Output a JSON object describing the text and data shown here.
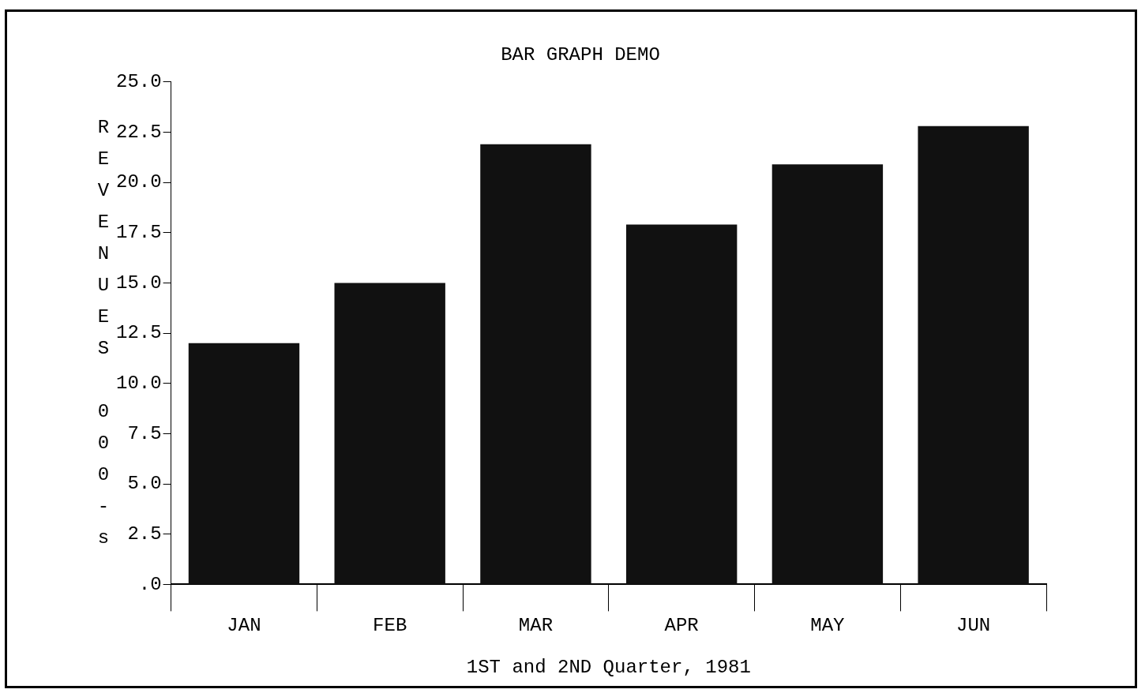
{
  "chart_data": {
    "type": "bar",
    "title": "BAR GRAPH DEMO",
    "xlabel": "1ST and 2ND Quarter, 1981",
    "ylabel": "REVENUES 000-s",
    "categories": [
      "JAN",
      "FEB",
      "MAR",
      "APR",
      "MAY",
      "JUN"
    ],
    "values": [
      12.0,
      15.0,
      21.9,
      17.9,
      20.9,
      22.8
    ],
    "color": "#111111",
    "ylim": [
      0,
      25
    ],
    "yticks": [
      {
        "value": 0,
        "label": ".0"
      },
      {
        "value": 2.5,
        "label": "2.5"
      },
      {
        "value": 5,
        "label": "5.0"
      },
      {
        "value": 7.5,
        "label": "7.5"
      },
      {
        "value": 10,
        "label": "10.0"
      },
      {
        "value": 12.5,
        "label": "12.5"
      },
      {
        "value": 15,
        "label": "15.0"
      },
      {
        "value": 17.5,
        "label": "17.5"
      },
      {
        "value": 20,
        "label": "20.0"
      },
      {
        "value": 22.5,
        "label": "22.5"
      },
      {
        "value": 25,
        "label": "25.0"
      }
    ]
  }
}
